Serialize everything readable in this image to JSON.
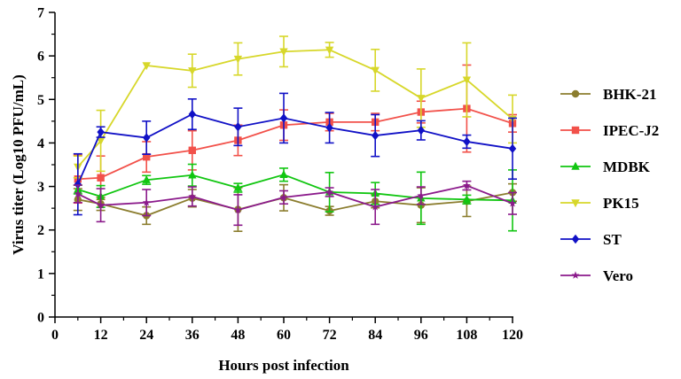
{
  "chart_data": {
    "type": "line",
    "title": "",
    "xlabel": "Hours post infection",
    "ylabel": "Virus titer (Log10 PFU/mL)",
    "xlim": [
      0,
      120
    ],
    "ylim": [
      0,
      7
    ],
    "xticks": [
      0,
      12,
      24,
      36,
      48,
      60,
      72,
      84,
      96,
      108,
      120
    ],
    "yticks": [
      0,
      1,
      2,
      3,
      4,
      5,
      6,
      7
    ],
    "legend_position": "right",
    "x": [
      6,
      12,
      24,
      36,
      48,
      60,
      72,
      84,
      96,
      108,
      120
    ],
    "series": [
      {
        "name": "BHK-21",
        "color": "#8B7D2E",
        "marker": "circle",
        "values": [
          2.7,
          2.6,
          2.33,
          2.73,
          2.47,
          2.74,
          2.44,
          2.66,
          2.57,
          2.66,
          2.86
        ],
        "errors": [
          0.25,
          0.15,
          0.2,
          0.2,
          0.5,
          0.3,
          0.1,
          0.15,
          0.4,
          0.35,
          0.2
        ]
      },
      {
        "name": "IPEC-J2",
        "color": "#F2514A",
        "marker": "square",
        "values": [
          3.17,
          3.2,
          3.68,
          3.83,
          4.06,
          4.41,
          4.48,
          4.48,
          4.71,
          4.79,
          4.45
        ],
        "errors": [
          0.55,
          0.5,
          0.35,
          0.45,
          0.35,
          0.35,
          0.2,
          0.2,
          0.25,
          1.0,
          0.2
        ]
      },
      {
        "name": "MDBK",
        "color": "#11C611",
        "marker": "triangle-up",
        "values": [
          2.93,
          2.77,
          3.15,
          3.26,
          2.97,
          3.27,
          2.87,
          2.84,
          2.73,
          2.7,
          2.68
        ],
        "errors": [
          0.1,
          0.25,
          0.1,
          0.25,
          0.1,
          0.15,
          0.45,
          0.25,
          0.6,
          0.1,
          0.7
        ]
      },
      {
        "name": "PK15",
        "color": "#D7D72A",
        "marker": "triangle-down",
        "values": [
          3.45,
          4.05,
          5.78,
          5.66,
          5.93,
          6.1,
          6.14,
          5.67,
          5.03,
          5.45,
          4.55
        ],
        "errors": [
          0.25,
          0.7,
          0,
          0.38,
          0.37,
          0.35,
          0.17,
          0.48,
          0.67,
          0.85,
          0.55
        ]
      },
      {
        "name": "ST",
        "color": "#1111C6",
        "marker": "diamond",
        "values": [
          3.05,
          4.25,
          4.12,
          4.66,
          4.37,
          4.57,
          4.35,
          4.17,
          4.29,
          4.03,
          3.87
        ],
        "errors": [
          0.7,
          0.12,
          0.38,
          0.35,
          0.43,
          0.57,
          0.35,
          0.48,
          0.22,
          0.15,
          0.7
        ]
      },
      {
        "name": "Vero",
        "color": "#8B1A8B",
        "marker": "star",
        "values": [
          2.83,
          2.57,
          2.63,
          2.77,
          2.46,
          2.75,
          2.87,
          2.53,
          2.79,
          3.02,
          2.61
        ],
        "errors": [
          0.2,
          0.38,
          0.3,
          0.22,
          0.35,
          0.15,
          0.1,
          0.4,
          0.2,
          0.1,
          0.25
        ]
      }
    ]
  }
}
